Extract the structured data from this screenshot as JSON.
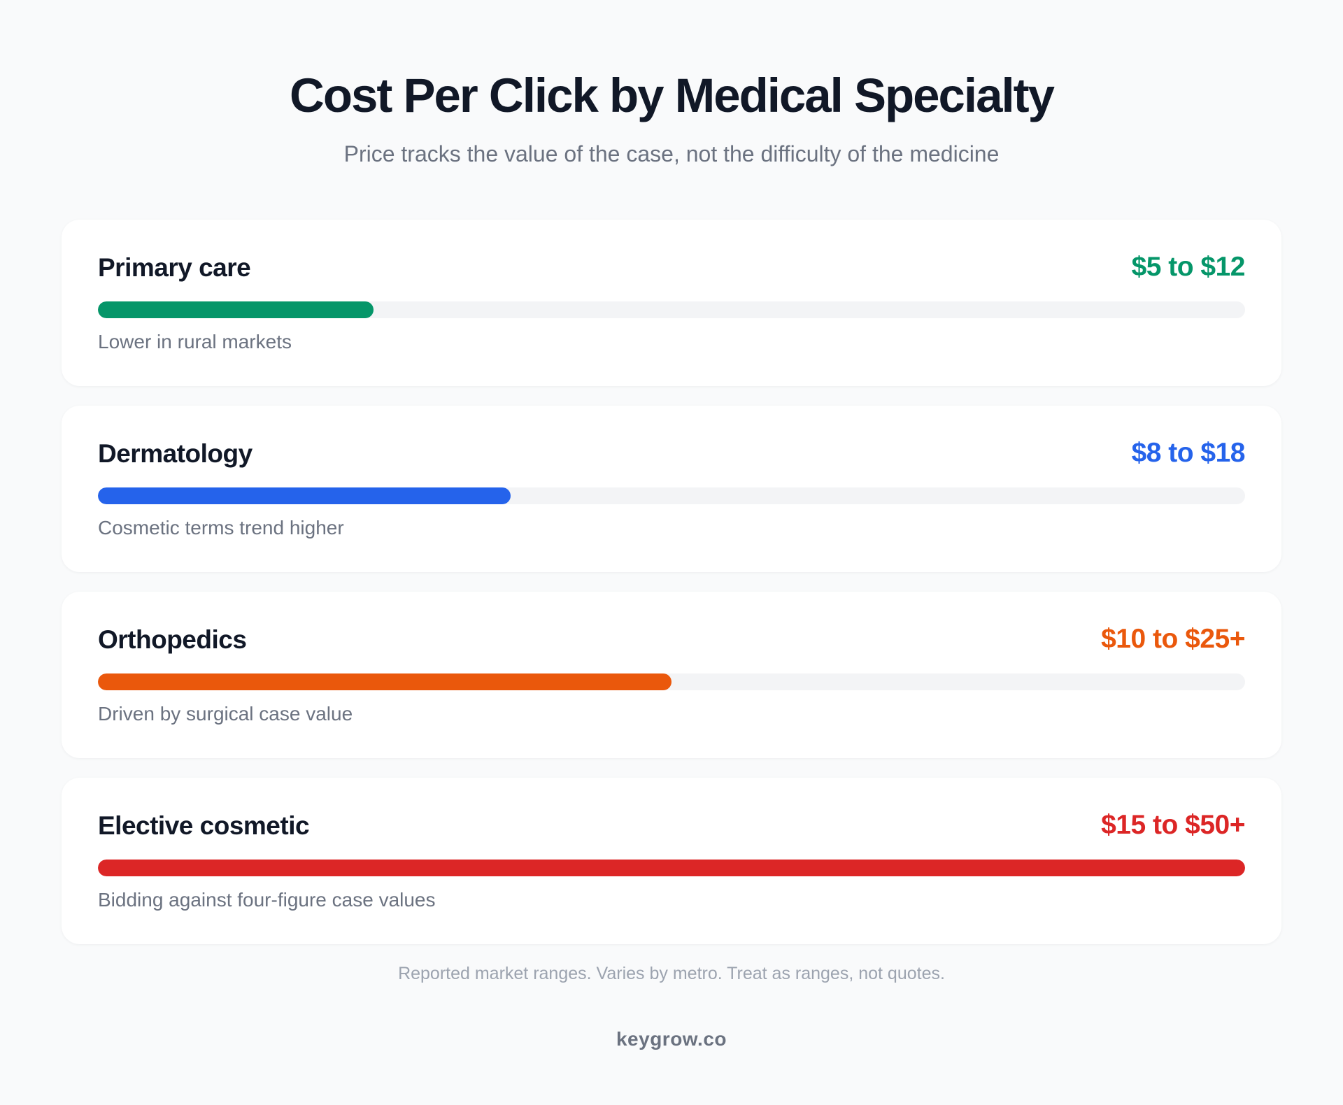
{
  "chart_data": {
    "type": "bar",
    "orientation": "horizontal",
    "title": "Cost Per Click by Medical Specialty",
    "subtitle": "Price tracks the value of the case, not the difficulty of the medicine",
    "categories": [
      "Primary care",
      "Dermatology",
      "Orthopedics",
      "Elective cosmetic"
    ],
    "ranges": [
      "$5 to $12",
      "$8 to $18",
      "$10 to $25+",
      "$15 to $50+"
    ],
    "notes": [
      "Lower in rural markets",
      "Cosmetic terms trend higher",
      "Driven by surgical case value",
      "Bidding against four-figure case values"
    ],
    "values": [
      12,
      18,
      25,
      50
    ],
    "xlim": [
      0,
      50
    ],
    "colors": [
      "#059669",
      "#2563eb",
      "#ea580c",
      "#dc2626"
    ],
    "footnote": "Reported market ranges. Varies by metro. Treat as ranges, not quotes.",
    "grid": false
  },
  "brand": "keygrow.co"
}
